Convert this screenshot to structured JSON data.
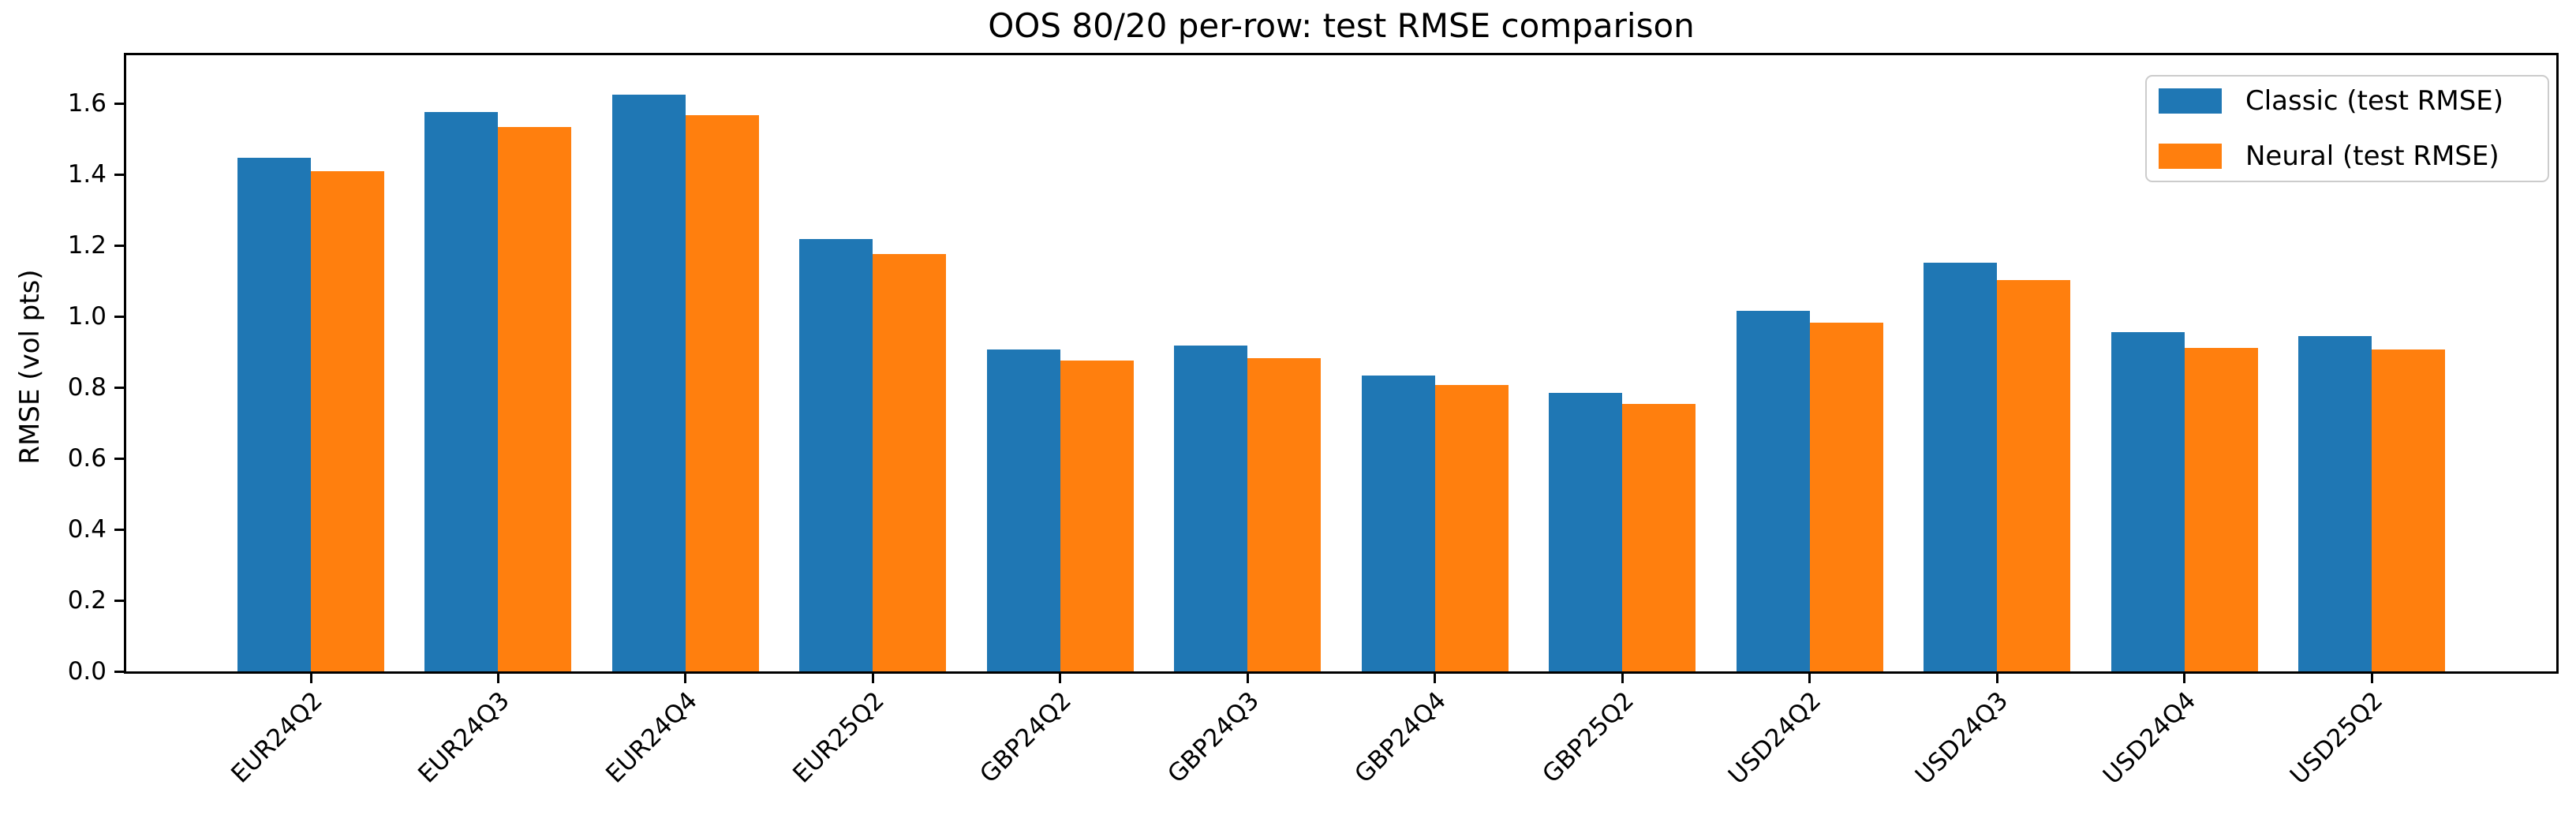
{
  "figure": {
    "title": "OOS 80/20 per-row: test RMSE comparison",
    "ylabel": "RMSE (vol pts)"
  },
  "chart_data": {
    "type": "bar",
    "title": "OOS 80/20 per-row: test RMSE comparison",
    "xlabel": "",
    "ylabel": "RMSE (vol pts)",
    "categories": [
      "EUR24Q2",
      "EUR24Q3",
      "EUR24Q4",
      "EUR25Q2",
      "GBP24Q2",
      "GBP24Q3",
      "GBP24Q4",
      "GBP25Q2",
      "USD24Q2",
      "USD24Q3",
      "USD24Q4",
      "USD25Q2"
    ],
    "series": [
      {
        "name": "Classic (test RMSE)",
        "color": "#1f77b4",
        "values": [
          1.447,
          1.577,
          1.625,
          1.218,
          0.907,
          0.918,
          0.833,
          0.784,
          1.016,
          1.151,
          0.956,
          0.944
        ]
      },
      {
        "name": "Neural (test RMSE)",
        "color": "#ff7f0e",
        "values": [
          1.41,
          1.534,
          1.566,
          1.176,
          0.876,
          0.882,
          0.807,
          0.753,
          0.982,
          1.102,
          0.911,
          0.907
        ]
      }
    ],
    "ylim": [
      0.0,
      1.736
    ],
    "yticks": [
      0.0,
      0.2,
      0.4,
      0.6,
      0.8,
      1.0,
      1.2,
      1.4,
      1.6
    ],
    "ytick_labels": [
      "0.0",
      "0.2",
      "0.4",
      "0.6",
      "0.8",
      "1.0",
      "1.2",
      "1.4",
      "1.6"
    ],
    "x_tick_rotation": 45,
    "grid": false,
    "legend_position": "upper right",
    "bar_group_mode": "grouped"
  }
}
